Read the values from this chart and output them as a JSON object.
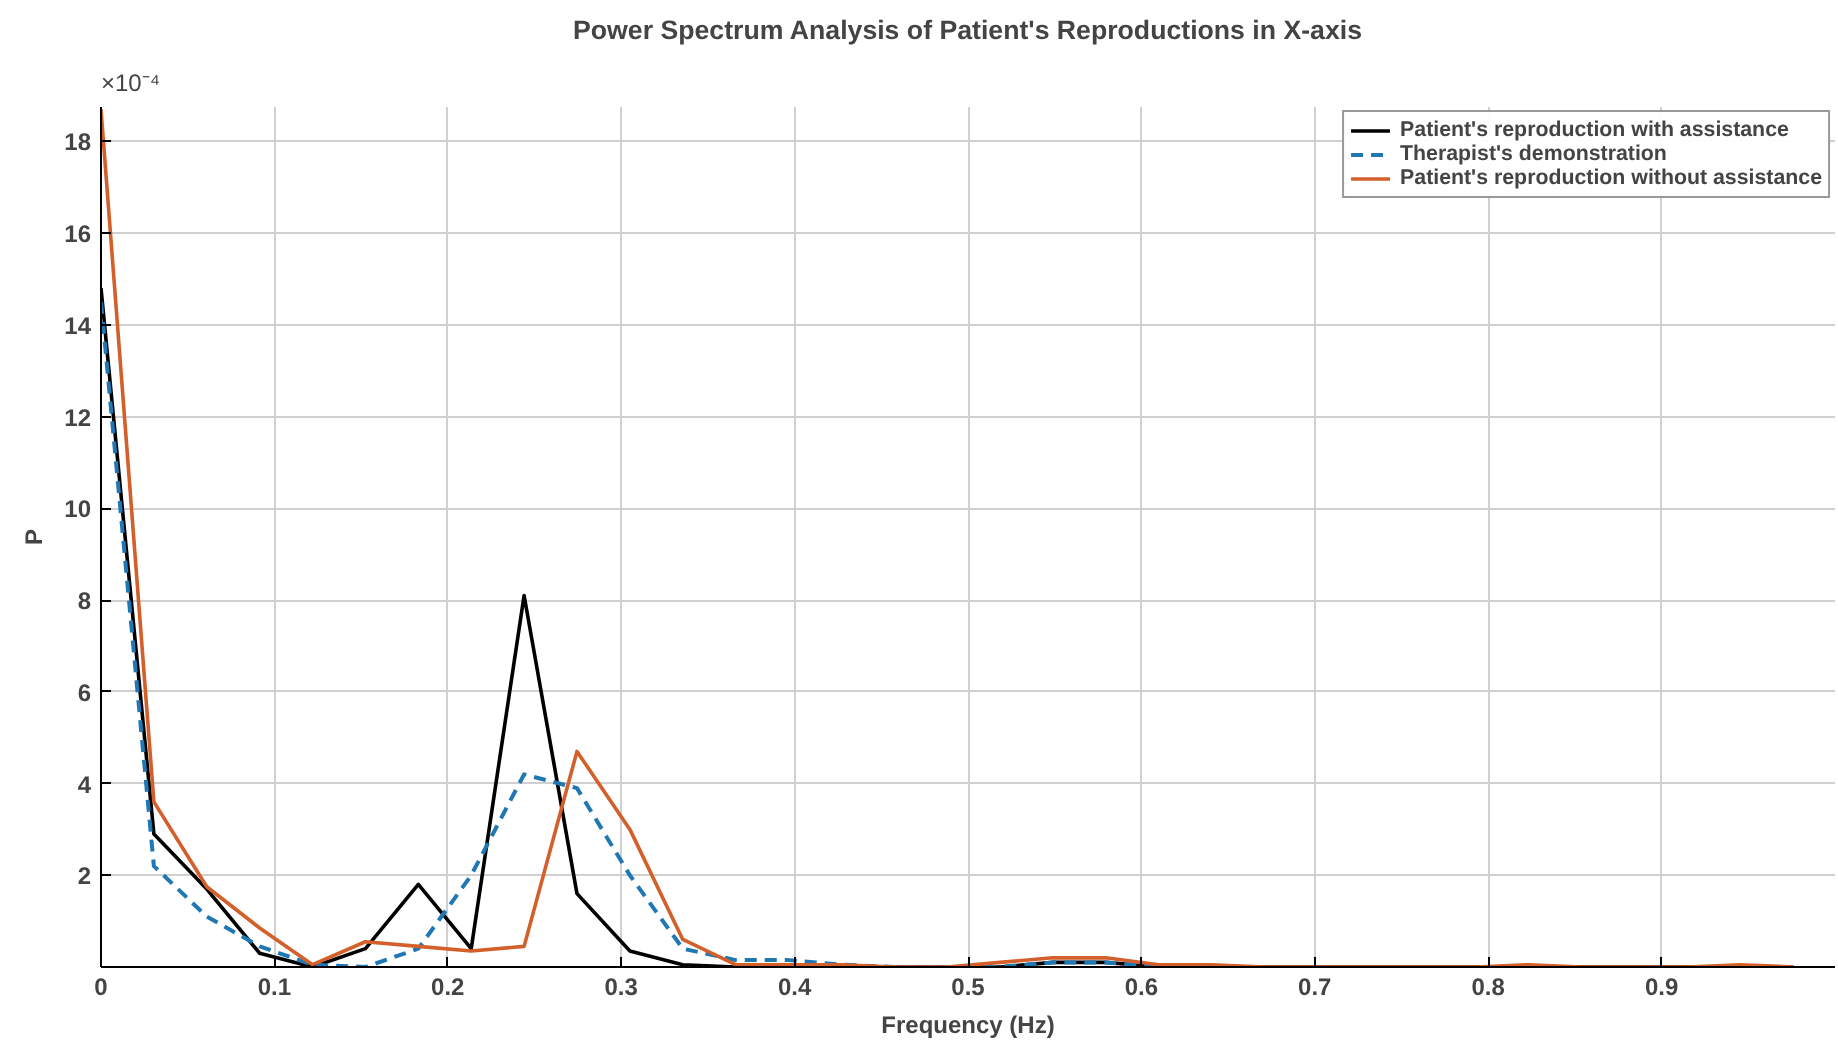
{
  "chart_data": {
    "type": "line",
    "title": "Power Spectrum Analysis of Patient's Reproductions in X-axis",
    "xlabel": "Frequency (Hz)",
    "ylabel": "P",
    "x": [
      0,
      0.0305,
      0.061,
      0.0915,
      0.122,
      0.1525,
      0.183,
      0.2135,
      0.244,
      0.2745,
      0.305,
      0.3355,
      0.366,
      0.3965,
      0.427,
      0.4575,
      0.488,
      0.5185,
      0.549,
      0.5795,
      0.61,
      0.6405,
      0.671,
      0.7015,
      0.732,
      0.7625,
      0.793,
      0.8235,
      0.854,
      0.8845,
      0.915,
      0.9455,
      0.976
    ],
    "series": [
      {
        "name": "Patient's reproduction with assistance",
        "color": "#000000",
        "line_style": "solid",
        "values": [
          14.8,
          2.9,
          1.7,
          0.3,
          0,
          0.4,
          1.8,
          0.4,
          8.1,
          1.6,
          0.35,
          0.05,
          0,
          0,
          0,
          0,
          0,
          0,
          0.1,
          0.1,
          0,
          0,
          0,
          0,
          0,
          0,
          0,
          0,
          0,
          0,
          0,
          0,
          0
        ]
      },
      {
        "name": "Therapist's demonstration",
        "color": "#1f77b4",
        "line_style": "dashed",
        "values": [
          14.5,
          2.2,
          1.1,
          0.45,
          0.05,
          0,
          0.4,
          2,
          4.2,
          3.9,
          2,
          0.4,
          0.15,
          0.15,
          0.05,
          0,
          0,
          0,
          0.1,
          0.1,
          0,
          0,
          null,
          null,
          null,
          null,
          null,
          null,
          null,
          null,
          null,
          null,
          null
        ]
      },
      {
        "name": "Patient's reproduction without assistance",
        "color": "#d35f2a",
        "line_style": "solid",
        "values": [
          18.7,
          3.6,
          1.75,
          0.85,
          0.05,
          0.55,
          0.45,
          0.35,
          0.45,
          4.7,
          3,
          0.6,
          0.05,
          0.05,
          0.05,
          0,
          0,
          0.1,
          0.2,
          0.2,
          0.05,
          0.05,
          0,
          0,
          0,
          0,
          0,
          0.05,
          0,
          0,
          0,
          0.05,
          0
        ]
      }
    ],
    "xlim": [
      0,
      1
    ],
    "xticks": [
      0,
      0.1,
      0.2,
      0.3,
      0.4,
      0.5,
      0.6,
      0.7,
      0.8,
      0.9
    ],
    "ylim": [
      0,
      18.75
    ],
    "yticks": [
      2,
      4,
      6,
      8,
      10,
      12,
      14,
      16,
      18
    ],
    "annotations": [
      "×10⁻⁴"
    ],
    "grid": true,
    "legend": "top right",
    "marker": "none"
  }
}
